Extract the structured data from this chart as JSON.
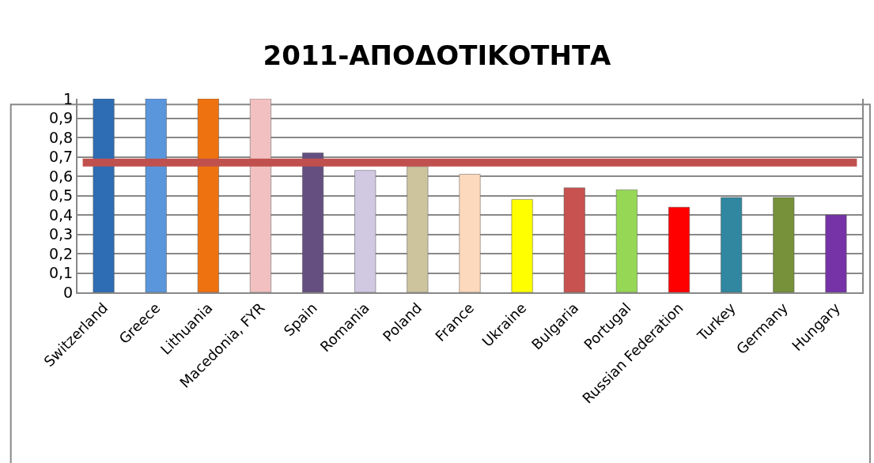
{
  "chart_data": {
    "type": "bar",
    "title": "2011-ΑΠΟΔΟΤΙΚΟΤΗΤΑ",
    "categories": [
      "Switzerland",
      "Greece",
      "Lithuania",
      "Macedonia, FYR",
      "Spain",
      "Romania",
      "Poland",
      "France",
      "Ukraine",
      "Bulgaria",
      "Portugal",
      "Russian Federation",
      "Turkey",
      "Germany",
      "Hungary"
    ],
    "values": [
      1,
      1,
      1,
      1,
      0.72,
      0.63,
      0.65,
      0.61,
      0.48,
      0.54,
      0.53,
      0.44,
      0.49,
      0.49,
      0.4
    ],
    "colors": [
      "#2e6db4",
      "#5a96dc",
      "#ef7210",
      "#f2c0c0",
      "#654f80",
      "#d1c8e2",
      "#cdc49e",
      "#fcd9bc",
      "#ffff00",
      "#c8524f",
      "#96d755",
      "#ff0000",
      "#31879f",
      "#76913a",
      "#7633a8"
    ],
    "ylim": [
      0,
      1
    ],
    "yticks": [
      0,
      {
        "value": 0.1,
        "label": "0,1"
      },
      {
        "value": 0.2,
        "label": "0,2"
      },
      {
        "value": 0.3,
        "label": "0,3"
      },
      {
        "value": 0.4,
        "label": "0,4"
      },
      {
        "value": 0.5,
        "label": "0,5"
      },
      {
        "value": 0.6,
        "label": "0,6"
      },
      {
        "value": 0.7,
        "label": "0,7"
      },
      {
        "value": 0.8,
        "label": "0,8"
      },
      {
        "value": 0.9,
        "label": "0,9"
      },
      1
    ],
    "grid": "y",
    "ref_lines": [
      {
        "axis": "y",
        "value": 0.67,
        "color": "#c0504d"
      }
    ]
  }
}
